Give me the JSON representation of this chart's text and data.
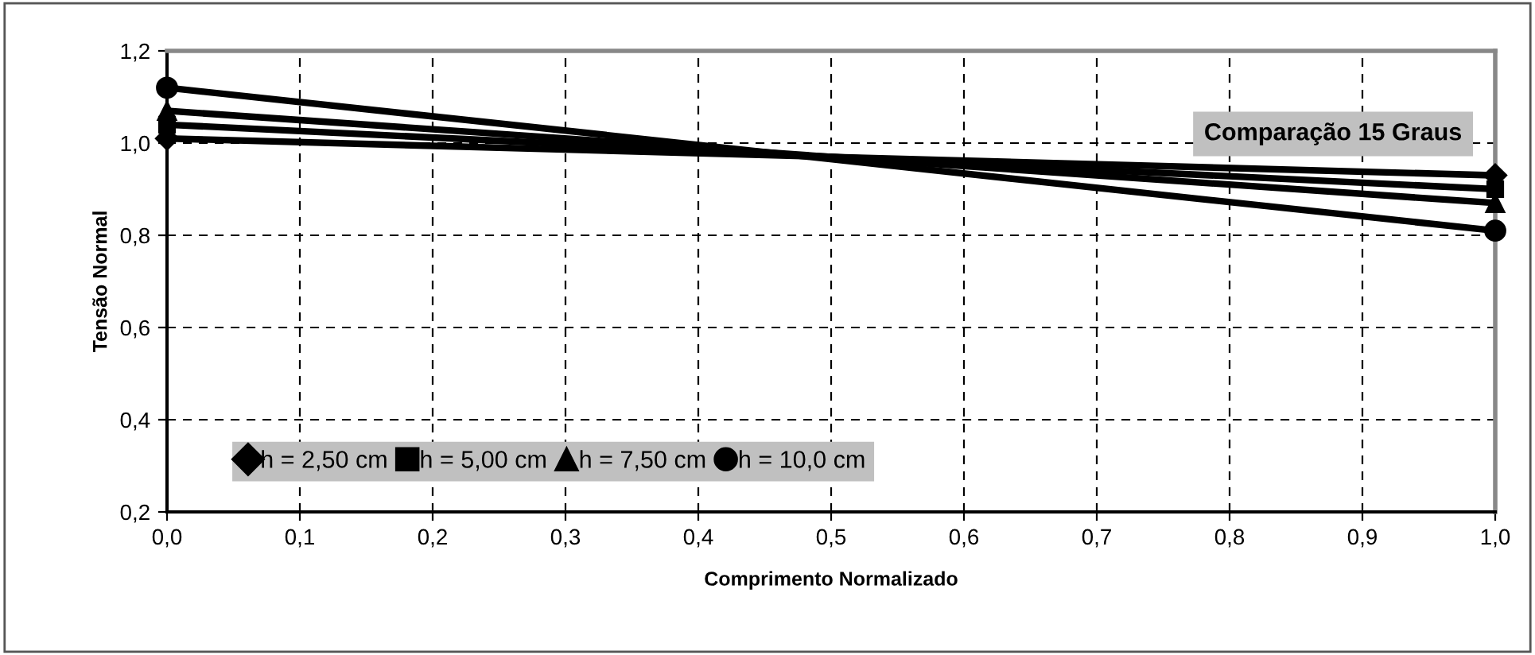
{
  "chart_data": {
    "type": "line",
    "title": "Comparação 15 Graus",
    "xlabel": "Comprimento Normalizado",
    "ylabel": "Tensão Normal",
    "x": [
      0.0,
      1.0
    ],
    "series": [
      {
        "name": "h = 2,50 cm",
        "color": "#000000",
        "marker": "diamond",
        "values": [
          1.01,
          0.93
        ]
      },
      {
        "name": "h = 5,00 cm",
        "color": "#000000",
        "marker": "square",
        "values": [
          1.04,
          0.9
        ]
      },
      {
        "name": "h = 7,50 cm",
        "color": "#000000",
        "marker": "triangle",
        "values": [
          1.07,
          0.87
        ]
      },
      {
        "name": "h = 10,0 cm",
        "color": "#000000",
        "marker": "circle",
        "values": [
          1.12,
          0.81
        ]
      }
    ],
    "xlim": [
      0.0,
      1.0
    ],
    "xticks": [
      {
        "value": 0.0,
        "label": "0,0"
      },
      {
        "value": 0.1,
        "label": "0,1"
      },
      {
        "value": 0.2,
        "label": "0,2"
      },
      {
        "value": 0.3,
        "label": "0,3"
      },
      {
        "value": 0.4,
        "label": "0,4"
      },
      {
        "value": 0.5,
        "label": "0,5"
      },
      {
        "value": 0.6,
        "label": "0,6"
      },
      {
        "value": 0.7,
        "label": "0,7"
      },
      {
        "value": 0.8,
        "label": "0,8"
      },
      {
        "value": 0.9,
        "label": "0,9"
      },
      {
        "value": 1.0,
        "label": "1,0"
      }
    ],
    "ylim": [
      0.2,
      1.2
    ],
    "yticks": [
      {
        "value": 0.2,
        "label": "0,2"
      },
      {
        "value": 0.4,
        "label": "0,4"
      },
      {
        "value": 0.6,
        "label": "0,6"
      },
      {
        "value": 0.8,
        "label": "0,8"
      },
      {
        "value": 1.0,
        "label": "1,0"
      },
      {
        "value": 1.2,
        "label": "1,2"
      }
    ],
    "grid": true,
    "legend": "bottom left",
    "line_style": "solid"
  }
}
